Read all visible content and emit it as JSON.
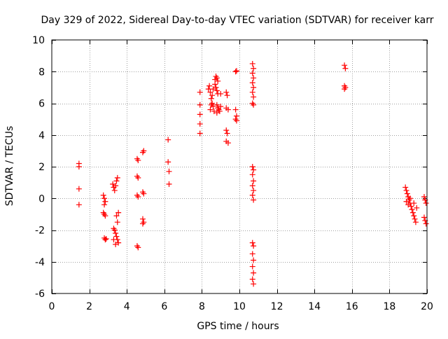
{
  "chart_data": {
    "type": "scatter",
    "title": "Day 329 of 2022, Sidereal Day-to-day VTEC variation (SDTVAR) for receiver karr",
    "xlabel": "GPS time / hours",
    "ylabel": "SDTVAR / TECUs",
    "xlim": [
      0,
      20
    ],
    "ylim": [
      -6,
      10
    ],
    "xticks": [
      0,
      2,
      4,
      6,
      8,
      10,
      12,
      14,
      16,
      18,
      20
    ],
    "yticks": [
      -6,
      -4,
      -2,
      0,
      2,
      4,
      6,
      8,
      10
    ],
    "xtick_labels": [
      "0",
      "2",
      "4",
      "6",
      "8",
      "10",
      "12",
      "14",
      "16",
      "18",
      "20"
    ],
    "ytick_labels": [
      "-6",
      "-4",
      "-2",
      "0",
      "2",
      "4",
      "6",
      "8",
      "10"
    ],
    "grid": true,
    "marker": "+",
    "series": [
      {
        "name": "SDTVAR",
        "color": "#ff0000",
        "points": [
          [
            1.45,
            2.2
          ],
          [
            1.45,
            2.0
          ],
          [
            1.45,
            0.6
          ],
          [
            1.45,
            -0.4
          ],
          [
            2.75,
            0.2
          ],
          [
            2.8,
            0.0
          ],
          [
            2.85,
            -0.2
          ],
          [
            2.8,
            -0.4
          ],
          [
            2.75,
            -0.9
          ],
          [
            2.8,
            -1.0
          ],
          [
            2.85,
            -1.1
          ],
          [
            2.8,
            -2.5
          ],
          [
            2.85,
            -2.6
          ],
          [
            2.9,
            -2.55
          ],
          [
            3.25,
            0.9
          ],
          [
            3.3,
            0.7
          ],
          [
            3.35,
            0.5
          ],
          [
            3.4,
            0.8
          ],
          [
            3.45,
            1.1
          ],
          [
            3.5,
            1.3
          ],
          [
            3.3,
            -1.9
          ],
          [
            3.35,
            -2.0
          ],
          [
            3.4,
            -2.2
          ],
          [
            3.45,
            -2.4
          ],
          [
            3.5,
            -2.6
          ],
          [
            3.55,
            -2.8
          ],
          [
            3.5,
            -1.5
          ],
          [
            3.45,
            -1.1
          ],
          [
            3.55,
            -0.9
          ],
          [
            3.3,
            -2.6
          ],
          [
            3.4,
            -2.9
          ],
          [
            4.55,
            2.5
          ],
          [
            4.6,
            2.4
          ],
          [
            4.55,
            1.4
          ],
          [
            4.6,
            1.3
          ],
          [
            4.55,
            0.2
          ],
          [
            4.6,
            0.1
          ],
          [
            4.55,
            -3.0
          ],
          [
            4.6,
            -3.1
          ],
          [
            4.85,
            2.9
          ],
          [
            4.9,
            3.0
          ],
          [
            4.85,
            0.4
          ],
          [
            4.9,
            0.3
          ],
          [
            4.85,
            -1.3
          ],
          [
            4.9,
            -1.5
          ],
          [
            4.85,
            -1.6
          ],
          [
            6.2,
            3.7
          ],
          [
            6.2,
            2.3
          ],
          [
            6.25,
            1.7
          ],
          [
            6.25,
            0.9
          ],
          [
            7.9,
            6.7
          ],
          [
            7.9,
            5.9
          ],
          [
            7.9,
            5.3
          ],
          [
            7.9,
            4.7
          ],
          [
            7.9,
            4.1
          ],
          [
            8.35,
            6.9
          ],
          [
            8.4,
            7.1
          ],
          [
            8.45,
            6.7
          ],
          [
            8.5,
            6.3
          ],
          [
            8.55,
            6.0
          ],
          [
            8.6,
            5.8
          ],
          [
            8.65,
            5.5
          ],
          [
            8.45,
            5.6
          ],
          [
            8.5,
            5.9
          ],
          [
            8.55,
            6.5
          ],
          [
            8.6,
            6.9
          ],
          [
            8.7,
            7.5
          ],
          [
            8.75,
            7.7
          ],
          [
            8.8,
            7.6
          ],
          [
            8.85,
            7.4
          ],
          [
            8.7,
            7.2
          ],
          [
            8.75,
            7.0
          ],
          [
            8.8,
            6.8
          ],
          [
            8.85,
            6.6
          ],
          [
            8.8,
            5.9
          ],
          [
            8.85,
            5.7
          ],
          [
            8.9,
            5.6
          ],
          [
            8.95,
            5.5
          ],
          [
            8.8,
            5.4
          ],
          [
            9.0,
            6.6
          ],
          [
            9.0,
            5.8
          ],
          [
            9.3,
            6.7
          ],
          [
            9.35,
            6.5
          ],
          [
            9.3,
            5.7
          ],
          [
            9.4,
            5.6
          ],
          [
            9.3,
            4.3
          ],
          [
            9.35,
            4.1
          ],
          [
            9.3,
            3.6
          ],
          [
            9.4,
            3.5
          ],
          [
            9.8,
            8.0
          ],
          [
            9.85,
            8.05
          ],
          [
            9.8,
            5.6
          ],
          [
            9.85,
            5.2
          ],
          [
            9.8,
            5.0
          ],
          [
            9.85,
            4.9
          ],
          [
            10.7,
            8.5
          ],
          [
            10.75,
            8.2
          ],
          [
            10.7,
            7.9
          ],
          [
            10.75,
            7.6
          ],
          [
            10.7,
            7.3
          ],
          [
            10.75,
            7.0
          ],
          [
            10.7,
            6.7
          ],
          [
            10.75,
            6.4
          ],
          [
            10.7,
            6.0
          ],
          [
            10.75,
            5.9
          ],
          [
            10.7,
            2.0
          ],
          [
            10.75,
            1.8
          ],
          [
            10.7,
            1.5
          ],
          [
            10.75,
            1.1
          ],
          [
            10.7,
            0.8
          ],
          [
            10.75,
            0.5
          ],
          [
            10.7,
            0.2
          ],
          [
            10.75,
            -0.1
          ],
          [
            10.7,
            -2.8
          ],
          [
            10.75,
            -3.0
          ],
          [
            10.7,
            -3.5
          ],
          [
            10.75,
            -3.9
          ],
          [
            10.7,
            -4.3
          ],
          [
            10.75,
            -4.7
          ],
          [
            10.7,
            -5.1
          ],
          [
            10.75,
            -5.4
          ],
          [
            15.6,
            8.4
          ],
          [
            15.65,
            8.2
          ],
          [
            15.6,
            7.1
          ],
          [
            15.65,
            7.0
          ],
          [
            15.6,
            6.9
          ],
          [
            18.85,
            0.7
          ],
          [
            18.9,
            0.5
          ],
          [
            18.95,
            0.3
          ],
          [
            19.0,
            0.1
          ],
          [
            19.05,
            -0.1
          ],
          [
            19.1,
            -0.3
          ],
          [
            19.15,
            -0.5
          ],
          [
            19.2,
            -0.7
          ],
          [
            19.25,
            -0.9
          ],
          [
            19.3,
            -1.1
          ],
          [
            19.35,
            -1.3
          ],
          [
            19.4,
            -1.5
          ],
          [
            18.9,
            -0.2
          ],
          [
            19.0,
            -0.4
          ],
          [
            19.1,
            0.0
          ],
          [
            19.3,
            -0.3
          ],
          [
            19.45,
            -0.6
          ],
          [
            19.85,
            0.1
          ],
          [
            19.9,
            -0.1
          ],
          [
            19.95,
            -0.3
          ],
          [
            19.85,
            -1.2
          ],
          [
            19.9,
            -1.4
          ],
          [
            19.95,
            -1.6
          ]
        ]
      }
    ]
  }
}
